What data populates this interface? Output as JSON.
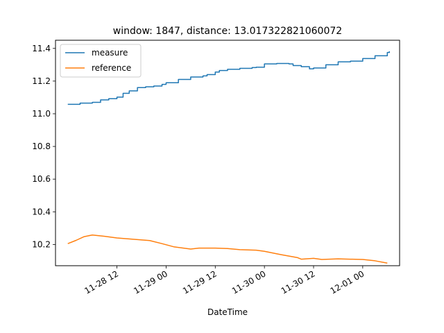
{
  "chart_data": {
    "type": "line",
    "title": "window: 1847, distance: 13.017322821060072",
    "xlabel": "DateTime",
    "ylabel": "",
    "x_range": [
      "2023-11-27 21:00",
      "2023-12-01 09:00"
    ],
    "ylim": [
      10.07,
      11.45
    ],
    "x_ticks": [
      {
        "x": "2023-11-28 12:00",
        "label": "11-28 12"
      },
      {
        "x": "2023-11-29 00:00",
        "label": "11-29 00"
      },
      {
        "x": "2023-11-29 12:00",
        "label": "11-29 12"
      },
      {
        "x": "2023-11-30 00:00",
        "label": "11-30 00"
      },
      {
        "x": "2023-11-30 12:00",
        "label": "11-30 12"
      },
      {
        "x": "2023-12-01 00:00",
        "label": "12-01 00"
      }
    ],
    "y_ticks": [
      10.2,
      10.4,
      10.6,
      10.8,
      11.0,
      11.2,
      11.4
    ],
    "y_tick_labels": [
      "10.2",
      "10.4",
      "10.6",
      "10.8",
      "11.0",
      "11.2",
      "11.4"
    ],
    "grid": false,
    "legend": "upper-left",
    "series": [
      {
        "name": "measure",
        "color": "#1f77b4",
        "step": true,
        "points": [
          [
            "2023-11-28 00:00",
            11.058
          ],
          [
            "2023-11-28 03:00",
            11.065
          ],
          [
            "2023-11-28 06:00",
            11.07
          ],
          [
            "2023-11-28 08:00",
            11.085
          ],
          [
            "2023-11-28 10:00",
            11.092
          ],
          [
            "2023-11-28 12:00",
            11.102
          ],
          [
            "2023-11-28 13:30",
            11.125
          ],
          [
            "2023-11-28 15:00",
            11.14
          ],
          [
            "2023-11-28 17:00",
            11.16
          ],
          [
            "2023-11-28 19:00",
            11.165
          ],
          [
            "2023-11-28 21:00",
            11.17
          ],
          [
            "2023-11-28 23:00",
            11.18
          ],
          [
            "2023-11-29 00:00",
            11.19
          ],
          [
            "2023-11-29 03:00",
            11.21
          ],
          [
            "2023-11-29 06:00",
            11.225
          ],
          [
            "2023-11-29 09:00",
            11.232
          ],
          [
            "2023-11-29 10:00",
            11.24
          ],
          [
            "2023-11-29 12:00",
            11.255
          ],
          [
            "2023-11-29 13:00",
            11.265
          ],
          [
            "2023-11-29 15:00",
            11.272
          ],
          [
            "2023-11-29 18:00",
            11.278
          ],
          [
            "2023-11-29 21:00",
            11.283
          ],
          [
            "2023-11-29 22:00",
            11.285
          ],
          [
            "2023-11-30 00:00",
            11.305
          ],
          [
            "2023-11-30 03:00",
            11.308
          ],
          [
            "2023-11-30 06:00",
            11.305
          ],
          [
            "2023-11-30 07:00",
            11.295
          ],
          [
            "2023-11-30 09:00",
            11.288
          ],
          [
            "2023-11-30 11:00",
            11.275
          ],
          [
            "2023-11-30 12:00",
            11.28
          ],
          [
            "2023-11-30 15:00",
            11.3
          ],
          [
            "2023-11-30 18:00",
            11.318
          ],
          [
            "2023-11-30 21:00",
            11.322
          ],
          [
            "2023-12-01 00:00",
            11.338
          ],
          [
            "2023-12-01 03:00",
            11.355
          ],
          [
            "2023-12-01 06:00",
            11.375
          ],
          [
            "2023-12-01 06:30",
            11.382
          ]
        ]
      },
      {
        "name": "reference",
        "color": "#ff7f0e",
        "step": false,
        "points": [
          [
            "2023-11-28 00:00",
            10.205
          ],
          [
            "2023-11-28 02:00",
            10.225
          ],
          [
            "2023-11-28 04:00",
            10.248
          ],
          [
            "2023-11-28 06:00",
            10.258
          ],
          [
            "2023-11-28 09:00",
            10.25
          ],
          [
            "2023-11-28 12:00",
            10.24
          ],
          [
            "2023-11-28 16:00",
            10.232
          ],
          [
            "2023-11-28 20:00",
            10.224
          ],
          [
            "2023-11-28 23:00",
            10.205
          ],
          [
            "2023-11-29 02:00",
            10.185
          ],
          [
            "2023-11-29 06:00",
            10.172
          ],
          [
            "2023-11-29 08:00",
            10.178
          ],
          [
            "2023-11-29 12:00",
            10.178
          ],
          [
            "2023-11-29 15:00",
            10.175
          ],
          [
            "2023-11-29 18:00",
            10.168
          ],
          [
            "2023-11-29 22:00",
            10.165
          ],
          [
            "2023-11-30 00:00",
            10.158
          ],
          [
            "2023-11-30 04:00",
            10.138
          ],
          [
            "2023-11-30 08:00",
            10.12
          ],
          [
            "2023-11-30 09:00",
            10.11
          ],
          [
            "2023-11-30 12:00",
            10.115
          ],
          [
            "2023-11-30 14:00",
            10.108
          ],
          [
            "2023-11-30 18:00",
            10.112
          ],
          [
            "2023-11-30 21:00",
            10.11
          ],
          [
            "2023-12-01 00:00",
            10.108
          ],
          [
            "2023-12-01 03:00",
            10.1
          ],
          [
            "2023-12-01 06:00",
            10.086
          ]
        ]
      }
    ]
  }
}
